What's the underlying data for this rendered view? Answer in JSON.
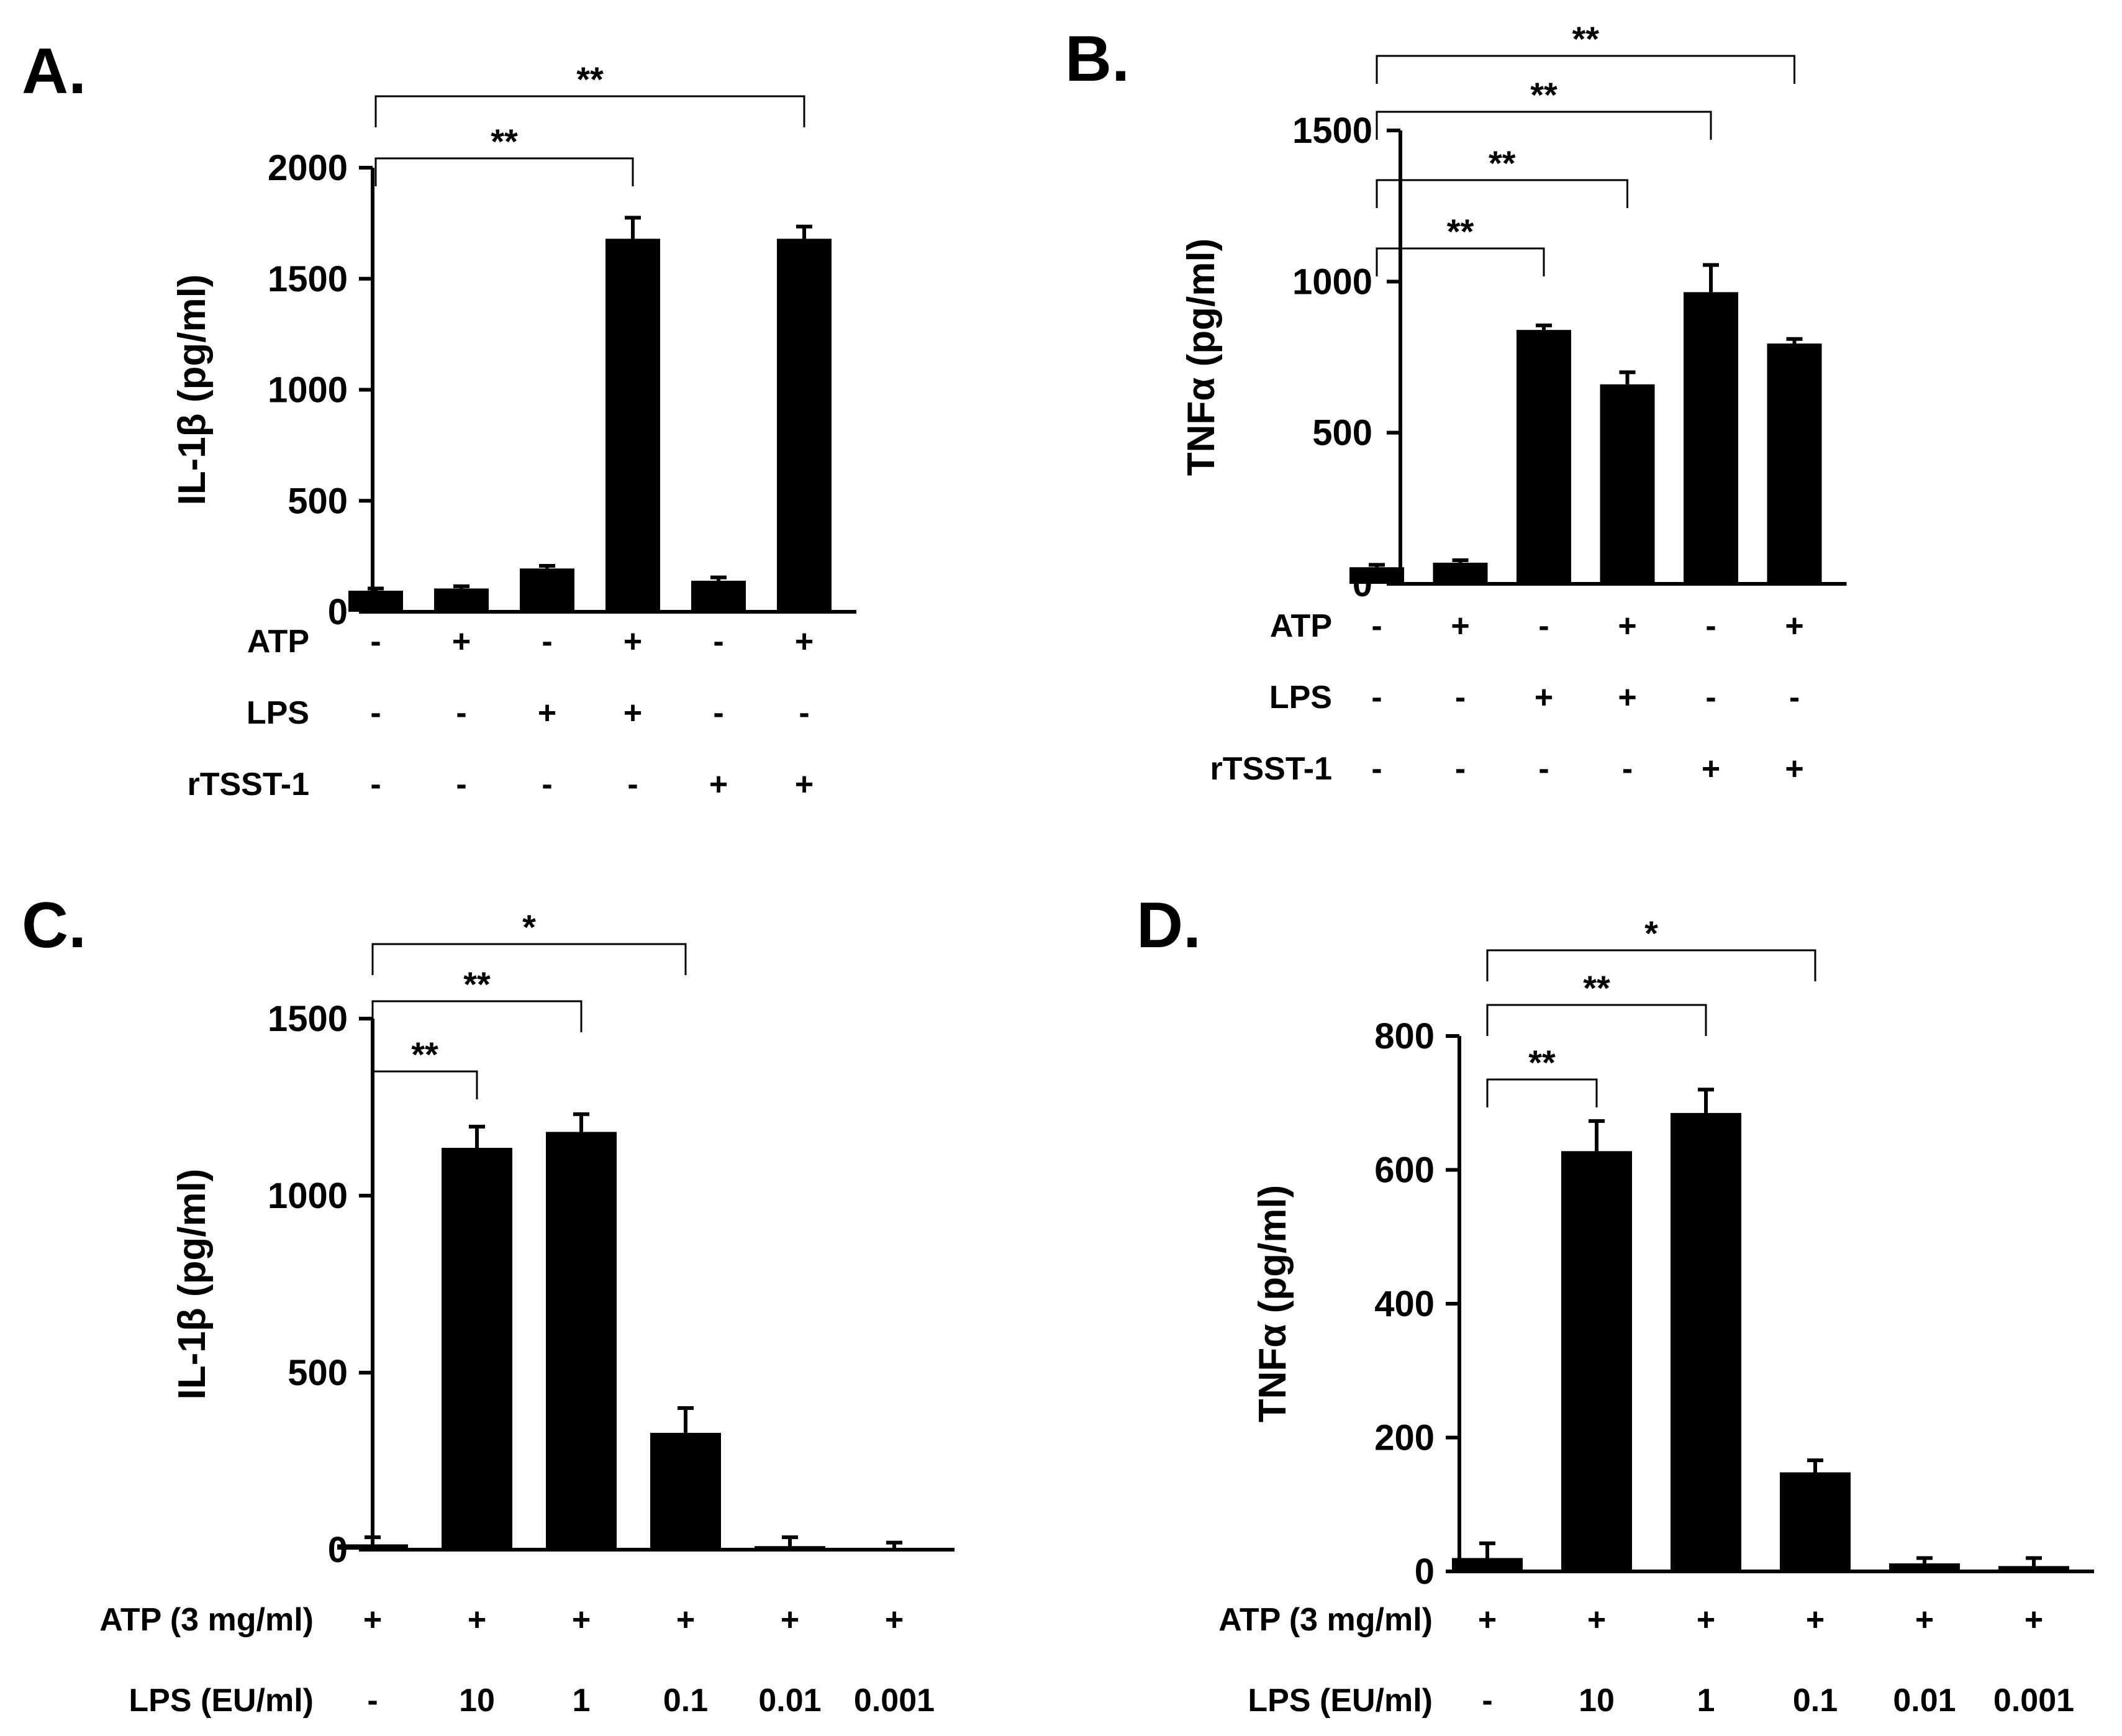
{
  "chart_data": [
    {
      "panel": "A.",
      "type": "bar",
      "title": "",
      "xlabel": "",
      "ylabel": "IL-1β (pg/ml)",
      "ylim": [
        0,
        2000
      ],
      "yticks": [
        "0",
        "500",
        "1000",
        "1500",
        "2000"
      ],
      "values": [
        95,
        105,
        195,
        1680,
        140,
        1680
      ],
      "errors": [
        10,
        10,
        12,
        95,
        15,
        55
      ],
      "conditions": [
        {
          "label": "ATP",
          "signs": [
            "-",
            "+",
            "-",
            "+",
            "-",
            "+"
          ]
        },
        {
          "label": "LPS",
          "signs": [
            "-",
            "-",
            "+",
            "+",
            "-",
            "-"
          ]
        },
        {
          "label": "rTSST-1",
          "signs": [
            "-",
            "-",
            "-",
            "-",
            "+",
            "+"
          ]
        }
      ],
      "significance": [
        {
          "from": 0,
          "to": 3,
          "label": "**"
        },
        {
          "from": 0,
          "to": 5,
          "label": "**"
        }
      ]
    },
    {
      "panel": "B.",
      "type": "bar",
      "title": "",
      "xlabel": "",
      "ylabel": "TNFα (pg/ml)",
      "ylim": [
        0,
        1500
      ],
      "yticks": [
        "0",
        "500",
        "1000",
        "1500"
      ],
      "values": [
        55,
        70,
        840,
        660,
        965,
        795
      ],
      "errors": [
        8,
        8,
        15,
        40,
        90,
        15
      ],
      "conditions": [
        {
          "label": "ATP",
          "signs": [
            "-",
            "+",
            "-",
            "+",
            "-",
            "+"
          ]
        },
        {
          "label": "LPS",
          "signs": [
            "-",
            "-",
            "+",
            "+",
            "-",
            "-"
          ]
        },
        {
          "label": "rTSST-1",
          "signs": [
            "-",
            "-",
            "-",
            "-",
            "+",
            "+"
          ]
        }
      ],
      "significance": [
        {
          "from": 0,
          "to": 2,
          "label": "**"
        },
        {
          "from": 0,
          "to": 3,
          "label": "**"
        },
        {
          "from": 0,
          "to": 4,
          "label": "**"
        },
        {
          "from": 0,
          "to": 5,
          "label": "**"
        }
      ]
    },
    {
      "panel": "C.",
      "type": "bar",
      "title": "",
      "xlabel": "",
      "ylabel": "IL-1β (pg/ml)",
      "ylim": [
        0,
        1500
      ],
      "yticks": [
        "0",
        "500",
        "1000",
        "1500"
      ],
      "values": [
        15,
        1135,
        1180,
        330,
        10,
        5
      ],
      "errors": [
        20,
        60,
        50,
        70,
        25,
        15
      ],
      "conditions": [
        {
          "label": "ATP (3 mg/ml)",
          "signs": [
            "+",
            "+",
            "+",
            "+",
            "+",
            "+"
          ]
        },
        {
          "label": "LPS (EU/ml)",
          "signs": [
            "-",
            "10",
            "1",
            "0.1",
            "0.01",
            "0.001"
          ]
        }
      ],
      "significance": [
        {
          "from": 0,
          "to": 1,
          "label": "**"
        },
        {
          "from": 0,
          "to": 2,
          "label": "**"
        },
        {
          "from": 0,
          "to": 3,
          "label": "*"
        }
      ]
    },
    {
      "panel": "D.",
      "type": "bar",
      "title": "",
      "xlabel": "",
      "ylabel": "TNFα (pg/ml)",
      "ylim": [
        0,
        800
      ],
      "yticks": [
        "0",
        "200",
        "400",
        "600",
        "800"
      ],
      "values": [
        20,
        628,
        685,
        148,
        12,
        8
      ],
      "errors": [
        22,
        45,
        35,
        18,
        8,
        12
      ],
      "conditions": [
        {
          "label": "ATP (3 mg/ml)",
          "signs": [
            "+",
            "+",
            "+",
            "+",
            "+",
            "+"
          ]
        },
        {
          "label": "LPS (EU/ml)",
          "signs": [
            "-",
            "10",
            "1",
            "0.1",
            "0.01",
            "0.001"
          ]
        }
      ],
      "significance": [
        {
          "from": 0,
          "to": 1,
          "label": "**"
        },
        {
          "from": 0,
          "to": 2,
          "label": "**"
        },
        {
          "from": 0,
          "to": 3,
          "label": "*"
        }
      ]
    }
  ]
}
